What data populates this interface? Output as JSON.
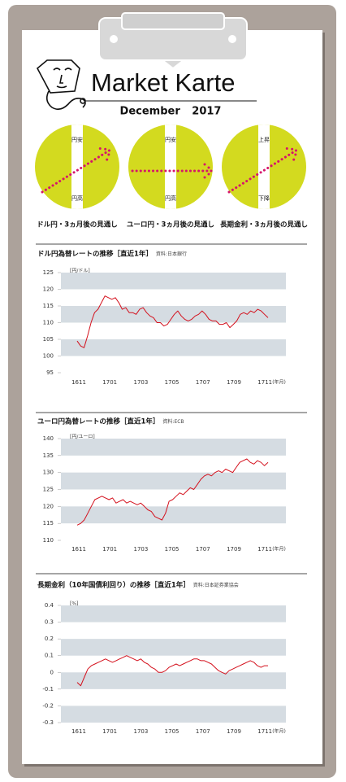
{
  "header": {
    "title": "Market Karte",
    "date": "December 2017"
  },
  "outlooks": [
    {
      "top_label": "円安",
      "bottom_label": "円高",
      "caption": "ドル円・3ヵ月後の見通し"
    },
    {
      "top_label": "円安",
      "bottom_label": "円高",
      "caption": "ユーロ円・3ヵ月後の見通し"
    },
    {
      "top_label": "上昇",
      "bottom_label": "下降",
      "caption": "長期金利・3ヵ月後の見通し"
    }
  ],
  "chart_data": [
    {
      "type": "line",
      "title": "ドル円為替レートの推移［直近1年］",
      "source": "資料:日本銀行",
      "y_unit": "[円/ドル]",
      "x_labels": [
        "1611",
        "1701",
        "1703",
        "1705",
        "1707",
        "1709",
        "1711"
      ],
      "x_unit": "(年月)",
      "ylim": [
        95,
        125
      ],
      "yticks": [
        95,
        100,
        105,
        110,
        115,
        120,
        125
      ],
      "color": "#d4101c",
      "values": [
        104.5,
        103,
        102.5,
        106,
        110,
        113,
        114,
        116,
        118,
        117.5,
        117,
        117.5,
        116,
        114,
        114.5,
        113,
        113,
        112.5,
        114,
        114.5,
        113,
        112,
        111.5,
        110,
        110,
        109,
        109.5,
        111,
        112.5,
        113.5,
        112,
        111,
        110.5,
        111,
        112,
        112.5,
        113.5,
        112.5,
        111,
        110.5,
        110.5,
        109.5,
        109.5,
        110,
        108.5,
        109.5,
        110.5,
        112.5,
        113,
        112.5,
        113.5,
        113,
        114,
        113.5,
        112.5,
        111.5
      ]
    },
    {
      "type": "line",
      "title": "ユーロ円為替レートの推移［直近1年］",
      "source": "資料:ECB",
      "y_unit": "[円/ユーロ]",
      "x_labels": [
        "1611",
        "1701",
        "1703",
        "1705",
        "1707",
        "1709",
        "1711"
      ],
      "x_unit": "(年月)",
      "ylim": [
        110,
        140
      ],
      "yticks": [
        110,
        115,
        120,
        125,
        130,
        135,
        140
      ],
      "color": "#d4101c",
      "values": [
        114.5,
        115,
        116,
        118,
        120,
        122,
        122.5,
        123,
        122.5,
        122,
        122.5,
        121,
        121.5,
        122,
        121,
        121.5,
        121,
        120.5,
        121,
        120,
        119,
        118.5,
        117,
        116.5,
        116,
        118,
        121.5,
        122,
        123,
        124,
        123.5,
        124.5,
        125.5,
        125,
        126.5,
        128,
        129,
        129.5,
        129,
        130,
        130.5,
        130,
        131,
        130.5,
        130,
        131.5,
        133,
        133.5,
        134,
        133,
        132.5,
        133.5,
        133,
        132,
        133
      ]
    },
    {
      "type": "line",
      "title": "長期金利（10年国債利回り）の推移［直近1年］",
      "source": "資料:日本証券業協会",
      "y_unit": "[%]",
      "x_labels": [
        "1611",
        "1701",
        "1703",
        "1705",
        "1707",
        "1709",
        "1711"
      ],
      "x_unit": "(年月)",
      "ylim": [
        -0.3,
        0.4
      ],
      "yticks": [
        -0.3,
        -0.2,
        -0.1,
        0,
        0.1,
        0.2,
        0.3,
        0.4
      ],
      "color": "#d4101c",
      "values": [
        -0.06,
        -0.08,
        -0.03,
        0.02,
        0.04,
        0.05,
        0.06,
        0.07,
        0.08,
        0.07,
        0.06,
        0.07,
        0.08,
        0.09,
        0.1,
        0.09,
        0.08,
        0.07,
        0.08,
        0.06,
        0.05,
        0.03,
        0.02,
        0.0,
        0.0,
        0.01,
        0.03,
        0.04,
        0.05,
        0.04,
        0.05,
        0.06,
        0.07,
        0.08,
        0.08,
        0.07,
        0.07,
        0.06,
        0.05,
        0.03,
        0.01,
        0.0,
        -0.01,
        0.01,
        0.02,
        0.03,
        0.04,
        0.05,
        0.06,
        0.07,
        0.06,
        0.04,
        0.03,
        0.04,
        0.04
      ]
    }
  ]
}
